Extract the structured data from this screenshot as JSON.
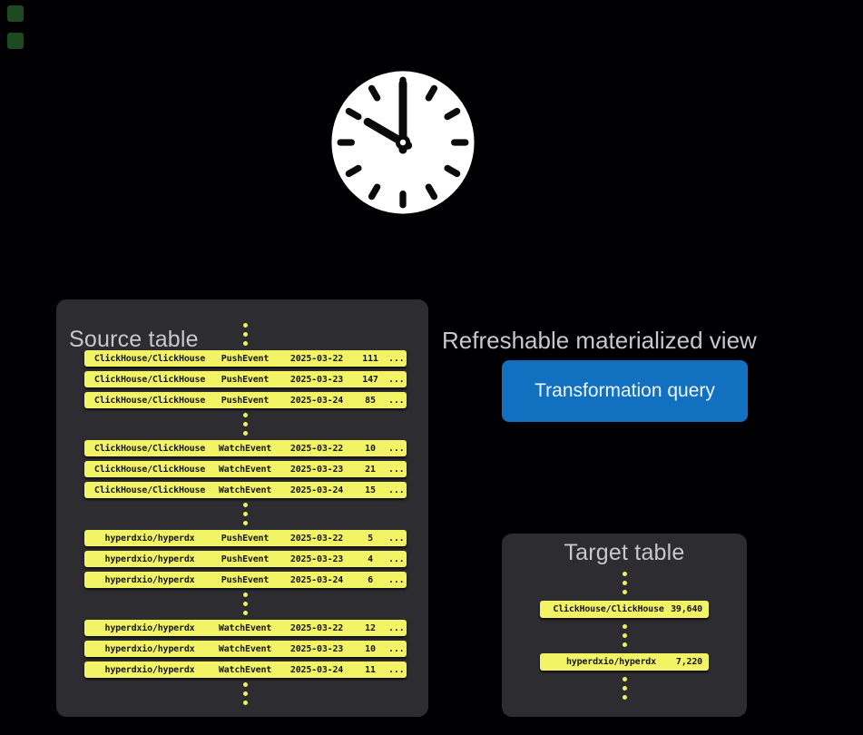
{
  "colors": {
    "bg": "#000003",
    "panel": "#2c2c31",
    "heading": "#c7c8cc",
    "row_yellow": "#f3f366",
    "row_text": "#17171b",
    "dot_yellow": "#efef65",
    "button_blue": "#1170bf",
    "button_text": "#eef5fc",
    "clock_face": "#ffffff",
    "clock_marks": "#0a0a0a",
    "decoration_green": "#1d4a21"
  },
  "clock": {
    "time": "10:00"
  },
  "flow": {
    "view_label": "Refreshable materialized view",
    "query_button_label": "Transformation query"
  },
  "source_table": {
    "title": "Source table",
    "groups": [
      {
        "rows": [
          [
            "ClickHouse/ClickHouse",
            "PushEvent",
            "2025-03-22",
            "111",
            "..."
          ],
          [
            "ClickHouse/ClickHouse",
            "PushEvent",
            "2025-03-23",
            "147",
            "..."
          ],
          [
            "ClickHouse/ClickHouse",
            "PushEvent",
            "2025-03-24",
            "85",
            "..."
          ]
        ]
      },
      {
        "rows": [
          [
            "ClickHouse/ClickHouse",
            "WatchEvent",
            "2025-03-22",
            "10",
            "..."
          ],
          [
            "ClickHouse/ClickHouse",
            "WatchEvent",
            "2025-03-23",
            "21",
            "..."
          ],
          [
            "ClickHouse/ClickHouse",
            "WatchEvent",
            "2025-03-24",
            "15",
            "..."
          ]
        ]
      },
      {
        "rows": [
          [
            "hyperdxio/hyperdx",
            "PushEvent",
            "2025-03-22",
            "5",
            "..."
          ],
          [
            "hyperdxio/hyperdx",
            "PushEvent",
            "2025-03-23",
            "4",
            "..."
          ],
          [
            "hyperdxio/hyperdx",
            "PushEvent",
            "2025-03-24",
            "6",
            "..."
          ]
        ]
      },
      {
        "rows": [
          [
            "hyperdxio/hyperdx",
            "WatchEvent",
            "2025-03-22",
            "12",
            "..."
          ],
          [
            "hyperdxio/hyperdx",
            "WatchEvent",
            "2025-03-23",
            "10",
            "..."
          ],
          [
            "hyperdxio/hyperdx",
            "WatchEvent",
            "2025-03-24",
            "11",
            "..."
          ]
        ]
      }
    ]
  },
  "target_table": {
    "title": "Target table",
    "rows": [
      {
        "name": "ClickHouse/ClickHouse",
        "value": "39,640"
      },
      {
        "name": "hyperdxio/hyperdx",
        "value": "7,220"
      }
    ]
  }
}
